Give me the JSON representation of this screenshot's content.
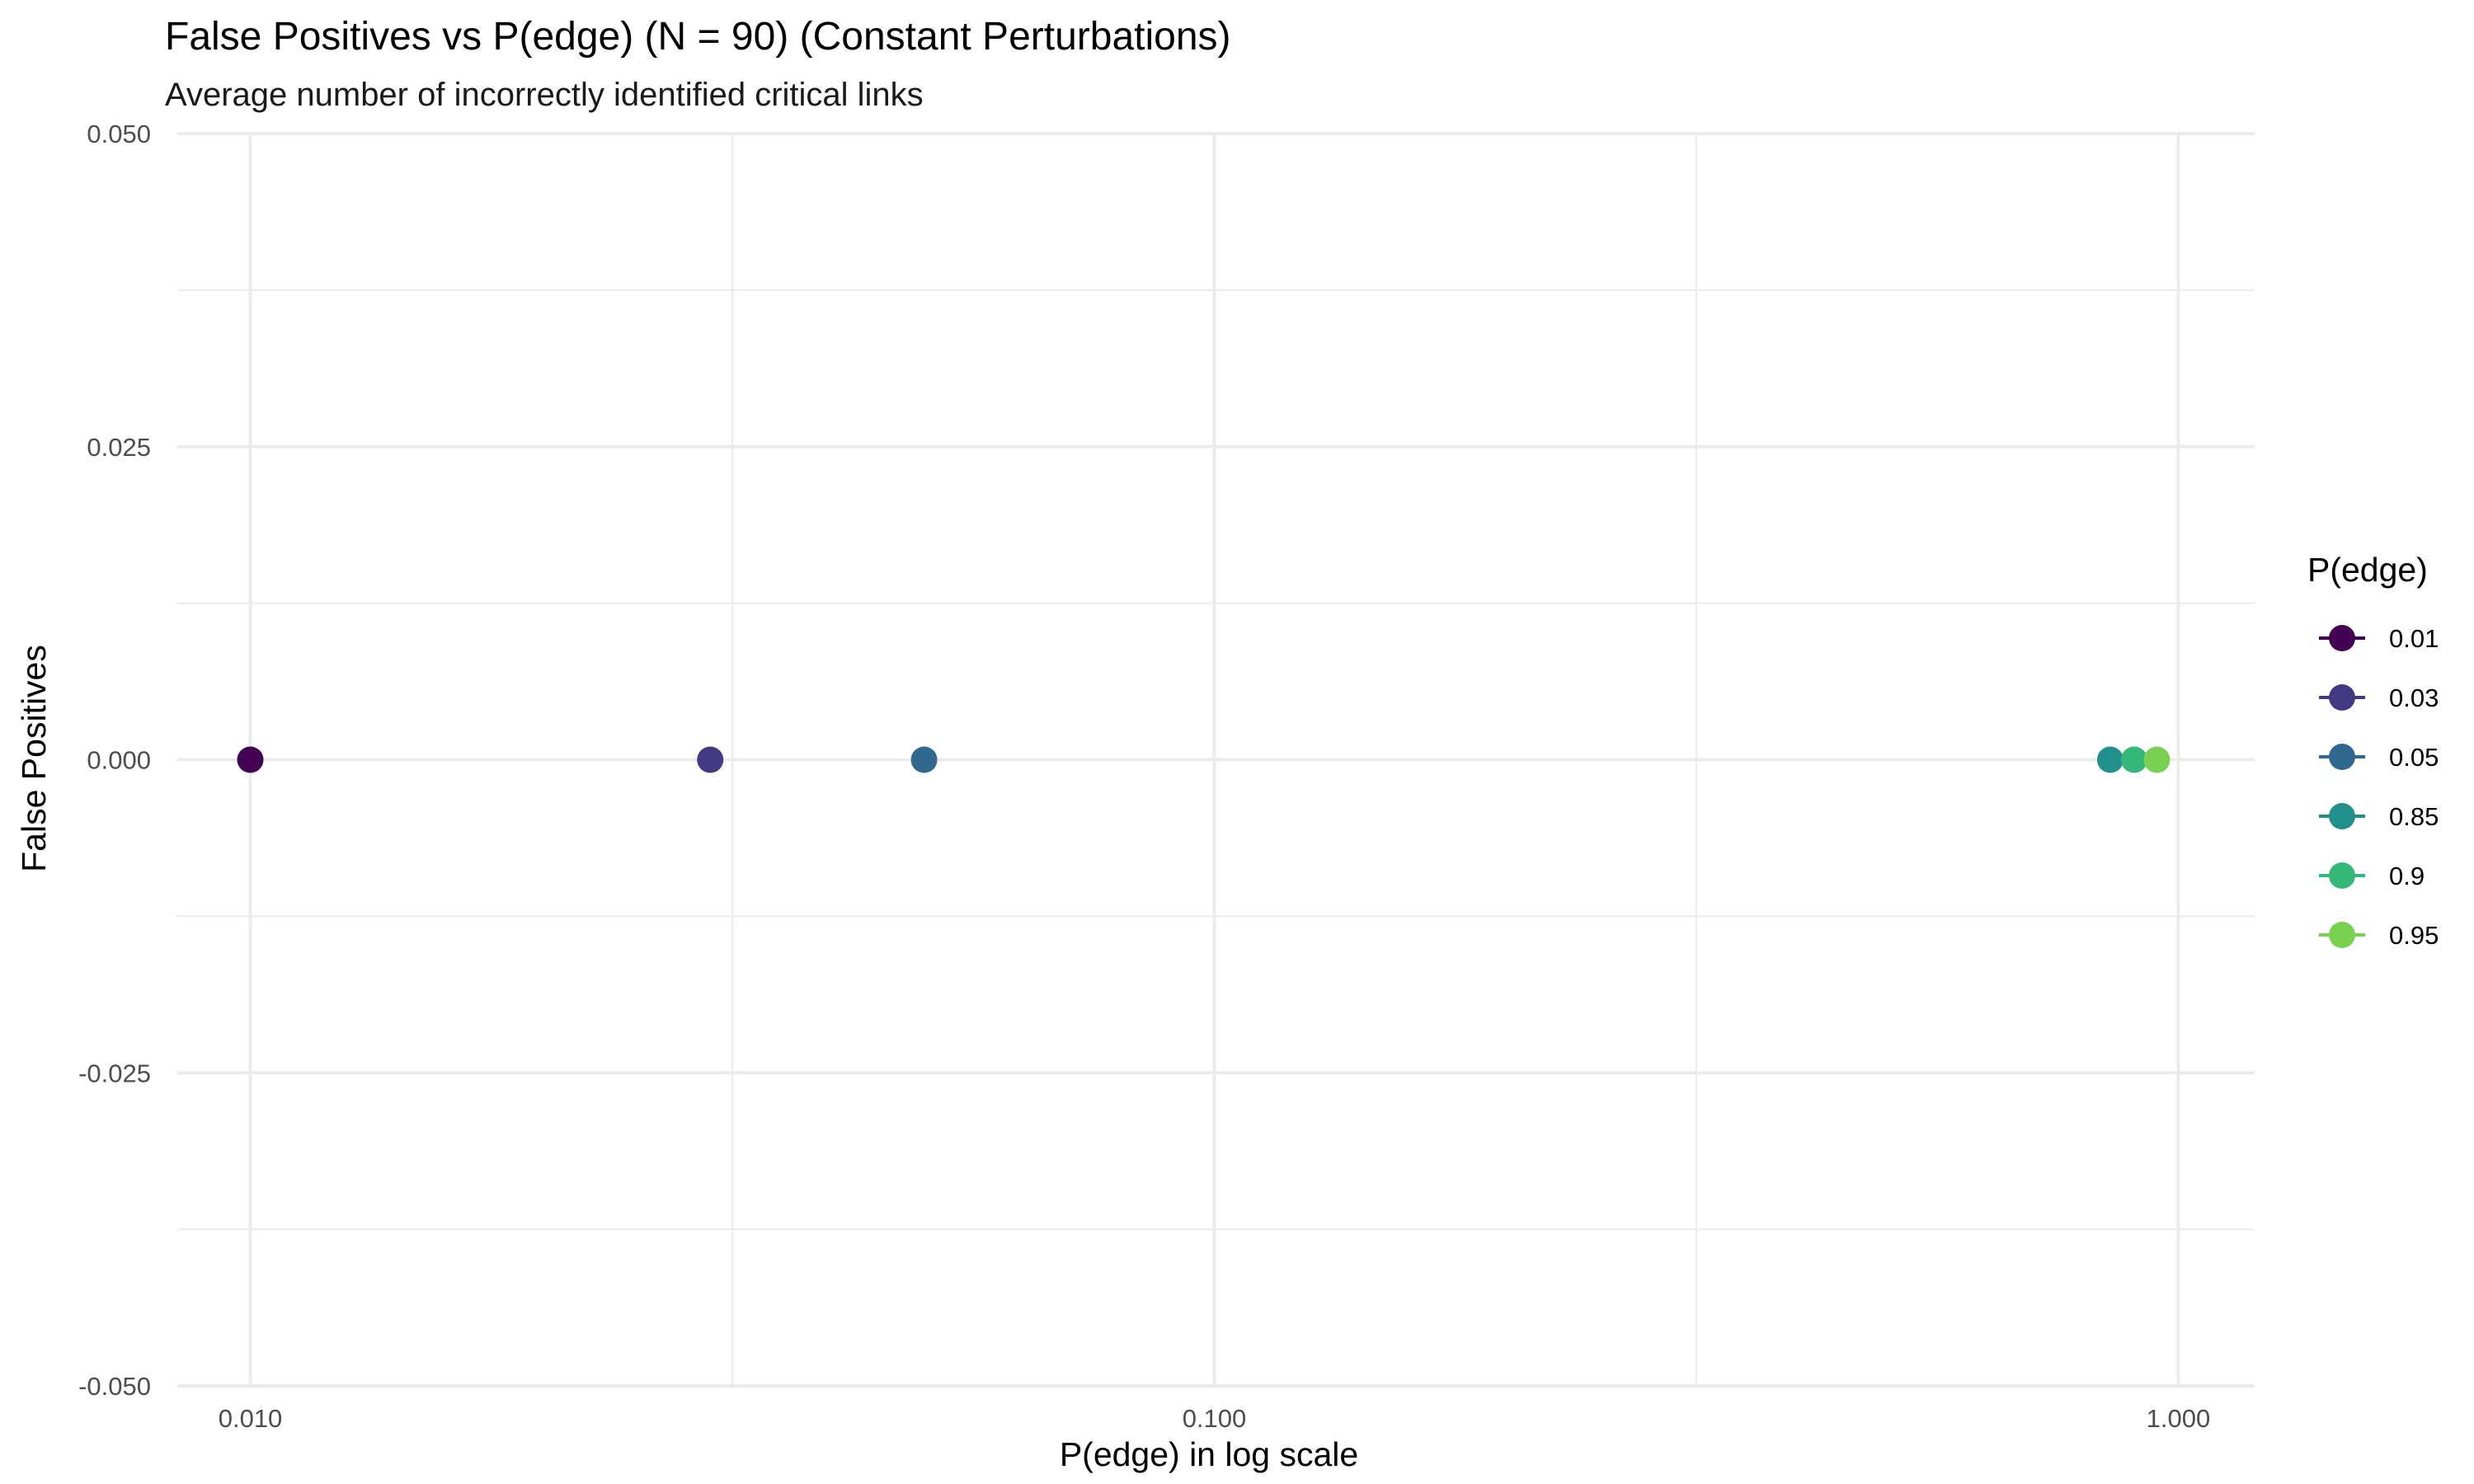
{
  "chart_data": {
    "type": "scatter",
    "title": "False Positives vs P(edge) (N = 90) (Constant Perturbations)",
    "subtitle": "Average number of incorrectly identified critical links",
    "xlabel": "P(edge) in log scale",
    "ylabel": "False Positives",
    "x_scale": "log10",
    "xlim": [
      0.0084,
      1.2
    ],
    "ylim": [
      -0.05,
      0.05
    ],
    "x_ticks": [
      {
        "value": 0.01,
        "label": "0.010"
      },
      {
        "value": 0.1,
        "label": "0.100"
      },
      {
        "value": 1.0,
        "label": "1.000"
      }
    ],
    "x_minor_ticks": [
      0.0316228,
      0.316228
    ],
    "y_ticks": [
      {
        "value": -0.05,
        "label": "-0.050"
      },
      {
        "value": -0.025,
        "label": "-0.025"
      },
      {
        "value": 0.0,
        "label": "0.000"
      },
      {
        "value": 0.025,
        "label": "0.025"
      },
      {
        "value": 0.05,
        "label": "0.050"
      }
    ],
    "y_minor_ticks": [
      -0.0375,
      -0.0125,
      0.0125,
      0.0375
    ],
    "grid": true,
    "legend": {
      "title": "P(edge)",
      "position": "right"
    },
    "series": [
      {
        "name": "0.01",
        "color": "#440154",
        "points": [
          {
            "x": 0.01,
            "y": 0
          }
        ]
      },
      {
        "name": "0.03",
        "color": "#443A83",
        "points": [
          {
            "x": 0.03,
            "y": 0
          }
        ]
      },
      {
        "name": "0.05",
        "color": "#31688E",
        "points": [
          {
            "x": 0.05,
            "y": 0
          }
        ]
      },
      {
        "name": "0.85",
        "color": "#21908C",
        "points": [
          {
            "x": 0.85,
            "y": 0
          }
        ]
      },
      {
        "name": "0.9",
        "color": "#35B779",
        "points": [
          {
            "x": 0.9,
            "y": 0
          }
        ]
      },
      {
        "name": "0.95",
        "color": "#7AD151",
        "points": [
          {
            "x": 0.95,
            "y": 0
          }
        ]
      }
    ]
  }
}
